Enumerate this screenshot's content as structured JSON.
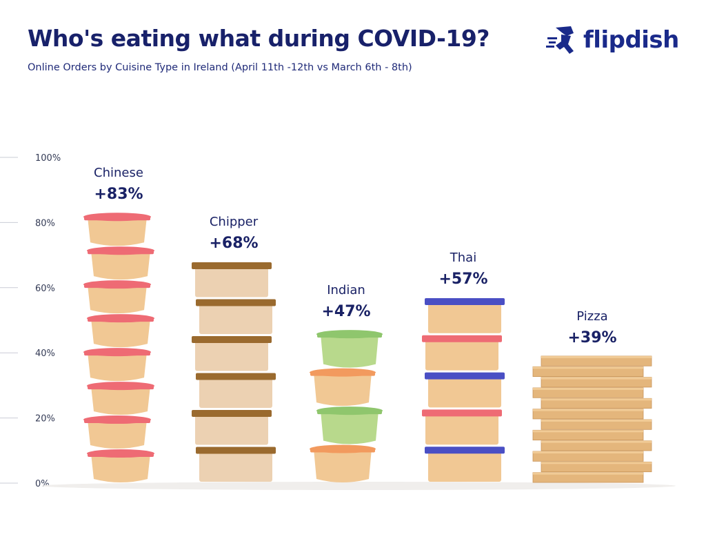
{
  "header": {
    "title": "Who's eating what during COVID-19?",
    "subtitle": "Online Orders by Cuisine Type in Ireland (April 11th -12th vs March 6th - 8th)"
  },
  "logo": {
    "text": "flipdish",
    "icon": "courier-runner-icon"
  },
  "colors": {
    "navy": "#18216a",
    "container_body": "#f1c894",
    "chinese_lid": "#ee6b74",
    "chipper_lid": "#9a6a2e",
    "chipper_body": "#ecd1b2",
    "indian_lid_orange": "#f29a5e",
    "indian_lid_green": "#8fc66d",
    "indian_body_green": "#b8d98c",
    "thai_lid_blue": "#4a4fc4",
    "thai_lid_red": "#ee6b74",
    "pizza_box": "#e4b67c"
  },
  "chart_data": {
    "type": "bar",
    "title": "Who's eating what during COVID-19?",
    "subtitle": "Online Orders by Cuisine Type in Ireland (April 11th -12th vs March 6th - 8th)",
    "categories": [
      "Chinese",
      "Chipper",
      "Indian",
      "Thai",
      "Pizza"
    ],
    "values": [
      83,
      68,
      47,
      57,
      39
    ],
    "value_labels": [
      "+83%",
      "+68%",
      "+47%",
      "+57%",
      "+39%"
    ],
    "yticks": [
      "0%",
      "20%",
      "40%",
      "60%",
      "80%",
      "100%"
    ],
    "ylim": [
      0,
      100
    ],
    "xlabel": "",
    "ylabel": "",
    "grid": false
  }
}
